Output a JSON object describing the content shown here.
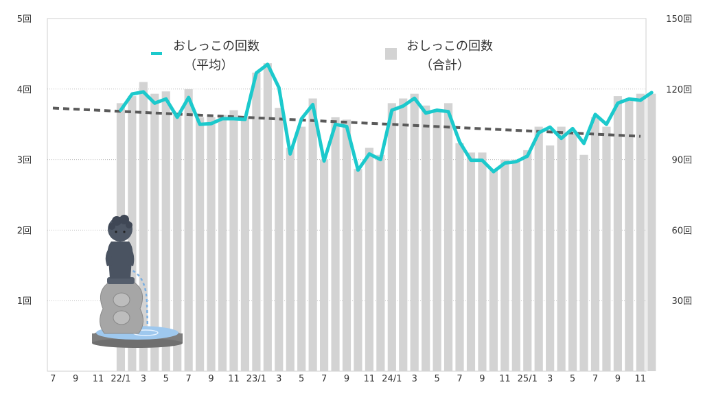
{
  "chart_data": {
    "type": "bar+line",
    "x_labels": [
      "7",
      "",
      "9",
      "",
      "11",
      "",
      "22/1",
      "",
      "3",
      "",
      "5",
      "",
      "7",
      "",
      "9",
      "",
      "11",
      "",
      "23/1",
      "",
      "3",
      "",
      "5",
      "",
      "7",
      "",
      "9",
      "",
      "11",
      "",
      "24/1",
      "",
      "3",
      "",
      "5",
      "",
      "7",
      "",
      "9",
      "",
      "11",
      "",
      "25/1",
      "",
      "3",
      "",
      "5",
      "",
      "7",
      "",
      "9",
      "",
      "11"
    ],
    "series": [
      {
        "name": "おしっこの回数\n（合計）",
        "kind": "bar",
        "axis": "right",
        "values": [
          null,
          null,
          null,
          null,
          null,
          null,
          114,
          117,
          123,
          118,
          119,
          109,
          120,
          108,
          108,
          109,
          111,
          108,
          127,
          131,
          112,
          95,
          104,
          116,
          90,
          108,
          107,
          86,
          95,
          92,
          114,
          116,
          118,
          113,
          111,
          114,
          97,
          93,
          93,
          86,
          90,
          90,
          94,
          104,
          96,
          104,
          101,
          92,
          108,
          104,
          117,
          116,
          118,
          118
        ]
      },
      {
        "name": "おしっこの回数\n（平均）",
        "kind": "line",
        "axis": "left",
        "values": [
          null,
          null,
          null,
          null,
          null,
          null,
          3.7,
          3.93,
          3.96,
          3.8,
          3.86,
          3.6,
          3.88,
          3.5,
          3.51,
          3.58,
          3.58,
          3.57,
          4.23,
          4.35,
          4.02,
          3.08,
          3.58,
          3.78,
          2.98,
          3.5,
          3.47,
          2.85,
          3.08,
          3.0,
          3.7,
          3.76,
          3.87,
          3.66,
          3.7,
          3.68,
          3.25,
          2.99,
          2.99,
          2.83,
          2.95,
          2.97,
          3.05,
          3.38,
          3.46,
          3.3,
          3.44,
          3.23,
          3.64,
          3.5,
          3.8,
          3.86,
          3.84,
          3.95
        ]
      },
      {
        "name": "trend",
        "kind": "dashed-trendline",
        "axis": "left",
        "values_start_end": [
          3.73,
          3.33
        ]
      }
    ],
    "left_axis": {
      "range": [
        0,
        5
      ],
      "ticks": [
        1,
        2,
        3,
        4,
        5
      ],
      "tick_suffix": "回"
    },
    "right_axis": {
      "range": [
        0,
        150
      ],
      "ticks": [
        30,
        60,
        90,
        120,
        150
      ],
      "tick_suffix": "回"
    },
    "grid": "horizontal-dotted",
    "legend_placement": "top",
    "colors": {
      "line": "#1cc9cc",
      "bar": "#d3d3d3",
      "trend": "#5a5a5a",
      "grid": "#bbbbbb"
    }
  },
  "legend": {
    "line_label_1": "おしっこの回数",
    "line_label_2": "（平均）",
    "bar_label_1": "おしっこの回数",
    "bar_label_2": "（合計）"
  },
  "illustration": {
    "icon": "manneken-pis-statue-icon"
  }
}
